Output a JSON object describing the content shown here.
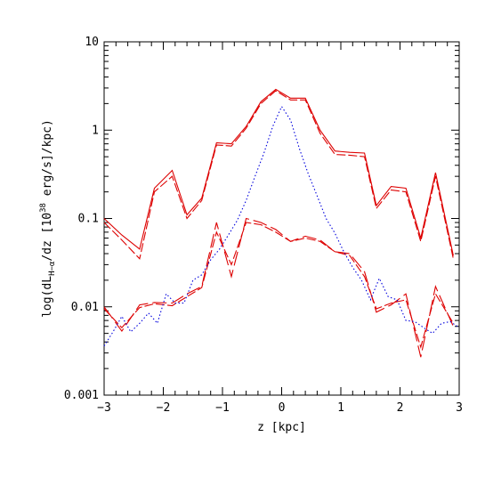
{
  "chart_data": {
    "type": "line",
    "title": "",
    "xlabel": "z [kpc]",
    "ylabel": {
      "prefix": "log(dL",
      "sub": "H−α",
      "mid": "/dz [10",
      "sup": "38",
      "suffix": " erg/s]/kpc)"
    },
    "xlim": [
      -3,
      3
    ],
    "ylim": [
      0.001,
      10
    ],
    "yscale": "log",
    "grid": false,
    "x_ticks": [
      -3,
      -2,
      -1,
      0,
      1,
      2,
      3
    ],
    "x_tick_labels": [
      "−3",
      "−2",
      "−1",
      "0",
      "1",
      "2",
      "3"
    ],
    "y_ticks": [
      0.001,
      0.01,
      0.1,
      1,
      10
    ],
    "y_tick_labels": [
      "0.001",
      "0.01",
      "0.1",
      "1",
      "10"
    ],
    "series": [
      {
        "style": "solid",
        "color": "#dd0000",
        "x": [
          -3.0,
          -2.7,
          -2.4,
          -2.15,
          -1.85,
          -1.6,
          -1.35,
          -1.1,
          -0.85,
          -0.6,
          -0.35,
          -0.1,
          0.15,
          0.4,
          0.65,
          0.9,
          1.15,
          1.4,
          1.6,
          1.85,
          2.1,
          2.35,
          2.6,
          2.9
        ],
        "y": [
          0.1,
          0.065,
          0.045,
          0.22,
          0.35,
          0.11,
          0.17,
          0.72,
          0.7,
          1.1,
          2.1,
          2.9,
          2.3,
          2.3,
          1.0,
          0.58,
          0.56,
          0.55,
          0.14,
          0.23,
          0.22,
          0.06,
          0.33,
          0.038
        ]
      },
      {
        "style": "dashed",
        "color": "#dd0000",
        "x": [
          -3.0,
          -2.7,
          -2.4,
          -2.15,
          -1.85,
          -1.6,
          -1.35,
          -1.1,
          -0.85,
          -0.6,
          -0.35,
          -0.1,
          0.15,
          0.4,
          0.65,
          0.9,
          1.15,
          1.4,
          1.6,
          1.85,
          2.1,
          2.35,
          2.6,
          2.9
        ],
        "y": [
          0.09,
          0.057,
          0.035,
          0.2,
          0.3,
          0.1,
          0.16,
          0.68,
          0.66,
          1.05,
          2.0,
          2.8,
          2.2,
          2.2,
          0.92,
          0.53,
          0.52,
          0.5,
          0.13,
          0.21,
          0.2,
          0.055,
          0.3,
          0.035
        ]
      },
      {
        "style": "long-dash",
        "color": "#dd0000",
        "x": [
          -3.0,
          -2.7,
          -2.4,
          -2.15,
          -1.85,
          -1.6,
          -1.35,
          -1.1,
          -0.85,
          -0.6,
          -0.35,
          -0.1,
          0.15,
          0.4,
          0.65,
          0.9,
          1.15,
          1.4,
          1.6,
          1.85,
          2.1,
          2.35,
          2.6,
          2.9
        ],
        "y": [
          0.01,
          0.0053,
          0.0105,
          0.0112,
          0.011,
          0.014,
          0.017,
          0.09,
          0.022,
          0.1,
          0.09,
          0.075,
          0.055,
          0.063,
          0.057,
          0.042,
          0.04,
          0.025,
          0.0087,
          0.0105,
          0.014,
          0.0027,
          0.017,
          0.006
        ]
      },
      {
        "style": "dashed",
        "color": "#dd0000",
        "x": [
          -3.0,
          -2.7,
          -2.4,
          -2.15,
          -1.85,
          -1.6,
          -1.35,
          -1.1,
          -0.85,
          -0.6,
          -0.35,
          -0.1,
          0.15,
          0.4,
          0.65,
          0.9,
          1.15,
          1.4,
          1.6,
          1.85,
          2.1,
          2.35,
          2.6,
          2.9
        ],
        "y": [
          0.0095,
          0.0058,
          0.0098,
          0.0108,
          0.0103,
          0.013,
          0.0165,
          0.07,
          0.03,
          0.09,
          0.085,
          0.07,
          0.055,
          0.06,
          0.055,
          0.042,
          0.038,
          0.022,
          0.0095,
          0.011,
          0.012,
          0.0035,
          0.014,
          0.0065
        ]
      },
      {
        "style": "dotted",
        "color": "#0000dd",
        "x": [
          -3.0,
          -2.85,
          -2.7,
          -2.55,
          -2.4,
          -2.25,
          -2.1,
          -1.95,
          -1.8,
          -1.65,
          -1.5,
          -1.35,
          -1.2,
          -1.05,
          -0.9,
          -0.75,
          -0.6,
          -0.45,
          -0.3,
          -0.15,
          0.0,
          0.15,
          0.3,
          0.45,
          0.6,
          0.75,
          0.9,
          1.05,
          1.2,
          1.35,
          1.5,
          1.65,
          1.8,
          1.95,
          2.1,
          2.25,
          2.4,
          2.55,
          2.7,
          2.85,
          3.0
        ],
        "y": [
          0.0036,
          0.0052,
          0.0078,
          0.0052,
          0.0065,
          0.0085,
          0.0065,
          0.014,
          0.011,
          0.011,
          0.02,
          0.023,
          0.034,
          0.045,
          0.065,
          0.095,
          0.16,
          0.3,
          0.55,
          1.1,
          1.85,
          1.3,
          0.62,
          0.32,
          0.18,
          0.1,
          0.068,
          0.042,
          0.028,
          0.02,
          0.012,
          0.021,
          0.013,
          0.012,
          0.007,
          0.0068,
          0.0058,
          0.005,
          0.0065,
          0.0068,
          0.0058
        ]
      }
    ]
  }
}
